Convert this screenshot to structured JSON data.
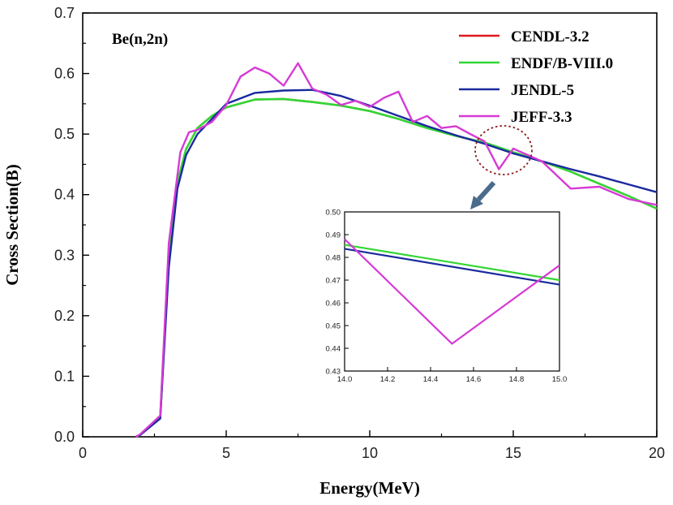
{
  "chart_data": {
    "type": "line",
    "title": "",
    "annotation": "Be(n,2n)",
    "xlabel": "Energy(MeV)",
    "ylabel": "Cross Section(B)",
    "xlim": [
      0,
      20
    ],
    "ylim": [
      0,
      0.7
    ],
    "xticks": [
      "0",
      "5",
      "10",
      "15",
      "20"
    ],
    "yticks": [
      "0.0",
      "0.1",
      "0.2",
      "0.3",
      "0.4",
      "0.5",
      "0.6",
      "0.7"
    ],
    "legend_position": "top-right",
    "series": [
      {
        "name": "CENDL-3.2",
        "color": "#e0191f",
        "x": [
          1.85,
          2.0,
          2.7,
          3.0,
          3.3,
          3.6,
          4.0,
          4.5,
          5.0,
          6.0,
          7.0,
          8.0,
          9.0,
          10.0,
          11.0,
          12.0,
          13.0,
          14.0,
          15.0,
          16.0,
          17.0,
          18.0,
          19.0,
          20.0
        ],
        "y": [
          0.0,
          0.003,
          0.032,
          0.3,
          0.42,
          0.475,
          0.51,
          0.53,
          0.544,
          0.557,
          0.558,
          0.553,
          0.547,
          0.538,
          0.525,
          0.51,
          0.497,
          0.486,
          0.47,
          0.455,
          0.438,
          0.418,
          0.398,
          0.377
        ]
      },
      {
        "name": "ENDF/B-VIII.0",
        "color": "#33d633",
        "x": [
          1.85,
          2.0,
          2.7,
          3.0,
          3.3,
          3.6,
          4.0,
          4.5,
          5.0,
          6.0,
          7.0,
          8.0,
          9.0,
          10.0,
          11.0,
          12.0,
          13.0,
          14.0,
          15.0,
          16.0,
          17.0,
          18.0,
          19.0,
          20.0
        ],
        "y": [
          0.0,
          0.003,
          0.032,
          0.3,
          0.42,
          0.475,
          0.51,
          0.53,
          0.544,
          0.557,
          0.558,
          0.553,
          0.547,
          0.538,
          0.525,
          0.51,
          0.497,
          0.486,
          0.47,
          0.455,
          0.438,
          0.418,
          0.398,
          0.377
        ]
      },
      {
        "name": "JENDL-5",
        "color": "#1a2a9e",
        "x": [
          1.85,
          2.0,
          2.7,
          3.0,
          3.3,
          3.6,
          4.0,
          4.5,
          5.0,
          6.0,
          7.0,
          8.0,
          9.0,
          10.0,
          11.0,
          12.0,
          13.0,
          14.0,
          15.0,
          16.0,
          17.0,
          18.0,
          19.0,
          20.0
        ],
        "y": [
          0.0,
          0.003,
          0.03,
          0.28,
          0.41,
          0.465,
          0.5,
          0.525,
          0.55,
          0.568,
          0.572,
          0.573,
          0.563,
          0.547,
          0.53,
          0.513,
          0.498,
          0.484,
          0.468,
          0.455,
          0.442,
          0.43,
          0.417,
          0.404
        ]
      },
      {
        "name": "JEFF-3.3",
        "color": "#d63ad6",
        "x": [
          1.85,
          2.0,
          2.7,
          3.0,
          3.4,
          3.7,
          4.0,
          4.5,
          5.0,
          5.5,
          6.0,
          6.5,
          7.0,
          7.5,
          8.0,
          8.5,
          9.0,
          9.5,
          10.0,
          10.5,
          11.0,
          11.5,
          12.0,
          12.5,
          13.0,
          13.5,
          14.0,
          14.5,
          15.0,
          16.0,
          17.0,
          18.0,
          19.0,
          20.0
        ],
        "y": [
          0.0,
          0.004,
          0.035,
          0.32,
          0.47,
          0.503,
          0.507,
          0.52,
          0.548,
          0.595,
          0.61,
          0.6,
          0.58,
          0.617,
          0.575,
          0.565,
          0.548,
          0.555,
          0.545,
          0.56,
          0.57,
          0.52,
          0.53,
          0.51,
          0.513,
          0.5,
          0.488,
          0.442,
          0.476,
          0.455,
          0.41,
          0.413,
          0.393,
          0.383
        ]
      }
    ],
    "inset": {
      "xlim": [
        14.0,
        15.0
      ],
      "ylim": [
        0.43,
        0.5
      ],
      "xticks": [
        "14.0",
        "14.2",
        "14.4",
        "14.6",
        "14.8",
        "15.0"
      ],
      "yticks": [
        "0.43",
        "0.44",
        "0.45",
        "0.46",
        "0.47",
        "0.48",
        "0.49",
        "0.50"
      ],
      "series": [
        {
          "name": "ENDF/B-VIII.0",
          "color": "#33d633",
          "x": [
            14.0,
            15.0
          ],
          "y": [
            0.4855,
            0.47
          ]
        },
        {
          "name": "JENDL-5",
          "color": "#1a2a9e",
          "x": [
            14.0,
            15.0
          ],
          "y": [
            0.4838,
            0.468
          ]
        },
        {
          "name": "JEFF-3.3",
          "color": "#d63ad6",
          "x": [
            14.0,
            14.5,
            15.0
          ],
          "y": [
            0.488,
            0.442,
            0.4765
          ]
        }
      ]
    }
  }
}
